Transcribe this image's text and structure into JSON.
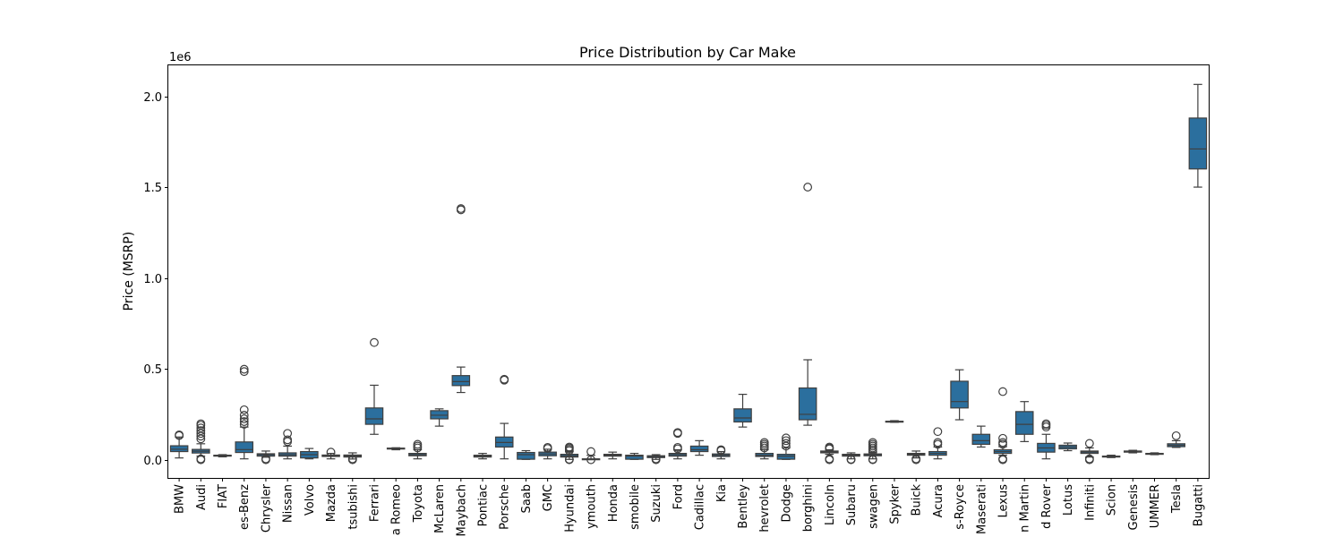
{
  "chart_data": {
    "type": "box",
    "title": "Price Distribution by Car Make",
    "xlabel": "",
    "ylabel": "Price (MSRP)",
    "y_offset_label": "1e6",
    "ylim": [
      -100000,
      2170000
    ],
    "y_ticks": [
      0,
      500000,
      1000000,
      1500000,
      2000000
    ],
    "y_tick_labels": [
      "0.0",
      "0.5",
      "1.0",
      "1.5",
      "2.0"
    ],
    "grid": false,
    "box_color": "#2b6f9e",
    "edge_color": "#3f3f3f",
    "categories": [
      {
        "label": "BMW",
        "whisker_low": 10000,
        "q1": 45000,
        "median": 58000,
        "q3": 77000,
        "whisker_high": 125000,
        "outliers": [
          133000,
          137000
        ]
      },
      {
        "label": "Audi",
        "whisker_low": 20000,
        "q1": 37000,
        "median": 47000,
        "q3": 57000,
        "whisker_high": 88000,
        "outliers": [
          0,
          5000,
          115000,
          130000,
          145000,
          160000,
          175000,
          190000,
          198000
        ]
      },
      {
        "label": "FIAT",
        "whisker_low": 16000,
        "q1": 20000,
        "median": 22000,
        "q3": 25000,
        "whisker_high": 28000,
        "outliers": []
      },
      {
        "label": "es-Benz",
        "whisker_low": 5000,
        "q1": 40000,
        "median": 56000,
        "q3": 98000,
        "whisker_high": 180000,
        "outliers": [
          195000,
          210000,
          225000,
          245000,
          275000,
          485000,
          498000
        ]
      },
      {
        "label": "Chrysler",
        "whisker_low": 14000,
        "q1": 20000,
        "median": 28000,
        "q3": 33000,
        "whisker_high": 48000,
        "outliers": [
          0,
          5000
        ]
      },
      {
        "label": "Nissan",
        "whisker_low": 5000,
        "q1": 20000,
        "median": 28000,
        "q3": 38000,
        "whisker_high": 75000,
        "outliers": [
          100000,
          110000,
          145000
        ]
      },
      {
        "label": "Volvo",
        "whisker_low": 5000,
        "q1": 10000,
        "median": 28000,
        "q3": 45000,
        "whisker_high": 62000,
        "outliers": []
      },
      {
        "label": "Mazda",
        "whisker_low": 5000,
        "q1": 18000,
        "median": 22000,
        "q3": 26000,
        "whisker_high": 35000,
        "outliers": [
          42000
        ]
      },
      {
        "label": "tsubishi",
        "whisker_low": 4000,
        "q1": 15000,
        "median": 20000,
        "q3": 26000,
        "whisker_high": 38000,
        "outliers": [
          0,
          5000
        ]
      },
      {
        "label": "Ferrari",
        "whisker_low": 140000,
        "q1": 195000,
        "median": 225000,
        "q3": 285000,
        "whisker_high": 410000,
        "outliers": [
          645000
        ]
      },
      {
        "label": "a Romeo",
        "whisker_low": 55000,
        "q1": 60000,
        "median": 62000,
        "q3": 64000,
        "whisker_high": 66000,
        "outliers": []
      },
      {
        "label": "Toyota",
        "whisker_low": 5000,
        "q1": 22000,
        "median": 28000,
        "q3": 35000,
        "whisker_high": 55000,
        "outliers": [
          65000,
          75000,
          85000
        ]
      },
      {
        "label": "McLaren",
        "whisker_low": 185000,
        "q1": 225000,
        "median": 245000,
        "q3": 270000,
        "whisker_high": 280000,
        "outliers": []
      },
      {
        "label": "Maybach",
        "whisker_low": 370000,
        "q1": 408000,
        "median": 430000,
        "q3": 463000,
        "whisker_high": 510000,
        "outliers": [
          1375000,
          1382000
        ]
      },
      {
        "label": "Pontiac",
        "whisker_low": 5000,
        "q1": 15000,
        "median": 20000,
        "q3": 25000,
        "whisker_high": 35000,
        "outliers": []
      },
      {
        "label": "Porsche",
        "whisker_low": 5000,
        "q1": 70000,
        "median": 95000,
        "q3": 125000,
        "whisker_high": 200000,
        "outliers": [
          438000,
          443000
        ]
      },
      {
        "label": "Saab",
        "whisker_low": 2000,
        "q1": 3000,
        "median": 28000,
        "q3": 40000,
        "whisker_high": 50000,
        "outliers": []
      },
      {
        "label": "GMC",
        "whisker_low": 5000,
        "q1": 22000,
        "median": 32000,
        "q3": 42000,
        "whisker_high": 58000,
        "outliers": [
          62000,
          68000
        ]
      },
      {
        "label": "Hyundai",
        "whisker_low": 2000,
        "q1": 15000,
        "median": 22000,
        "q3": 30000,
        "whisker_high": 45000,
        "outliers": [
          0,
          3000,
          50000,
          58000,
          65000,
          70000
        ]
      },
      {
        "label": "ymouth",
        "whisker_low": 2000,
        "q1": 2500,
        "median": 3000,
        "q3": 5000,
        "whisker_high": 25000,
        "outliers": [
          45000,
          0
        ]
      },
      {
        "label": "Honda",
        "whisker_low": 5000,
        "q1": 20000,
        "median": 25000,
        "q3": 30000,
        "whisker_high": 42000,
        "outliers": []
      },
      {
        "label": "smobile",
        "whisker_low": 2000,
        "q1": 3000,
        "median": 20000,
        "q3": 25000,
        "whisker_high": 35000,
        "outliers": []
      },
      {
        "label": "Suzuki",
        "whisker_low": 2000,
        "q1": 12000,
        "median": 18000,
        "q3": 22000,
        "whisker_high": 28000,
        "outliers": [
          0,
          5000
        ]
      },
      {
        "label": "Ford",
        "whisker_low": 5000,
        "q1": 20000,
        "median": 28000,
        "q3": 35000,
        "whisker_high": 55000,
        "outliers": [
          60000,
          68000,
          145000,
          150000
        ]
      },
      {
        "label": "Cadillac",
        "whisker_low": 25000,
        "q1": 45000,
        "median": 55000,
        "q3": 75000,
        "whisker_high": 105000,
        "outliers": []
      },
      {
        "label": "Kia",
        "whisker_low": 5000,
        "q1": 18000,
        "median": 25000,
        "q3": 32000,
        "whisker_high": 45000,
        "outliers": [
          50000,
          55000
        ]
      },
      {
        "label": "Bentley",
        "whisker_low": 180000,
        "q1": 208000,
        "median": 230000,
        "q3": 280000,
        "whisker_high": 360000,
        "outliers": []
      },
      {
        "label": "hevrolet",
        "whisker_low": 5000,
        "q1": 18000,
        "median": 25000,
        "q3": 35000,
        "whisker_high": 55000,
        "outliers": [
          65000,
          75000,
          85000,
          95000
        ]
      },
      {
        "label": "Dodge",
        "whisker_low": 2000,
        "q1": 3000,
        "median": 20000,
        "q3": 30000,
        "whisker_high": 65000,
        "outliers": [
          75000,
          90000,
          105000,
          120000
        ]
      },
      {
        "label": "borghini",
        "whisker_low": 190000,
        "q1": 220000,
        "median": 250000,
        "q3": 395000,
        "whisker_high": 550000,
        "outliers": [
          1500000
        ]
      },
      {
        "label": "Lincoln",
        "whisker_low": 30000,
        "q1": 38000,
        "median": 42000,
        "q3": 48000,
        "whisker_high": 55000,
        "outliers": [
          0,
          5000,
          60000,
          65000,
          70000
        ]
      },
      {
        "label": "Subaru",
        "whisker_low": 5000,
        "q1": 20000,
        "median": 25000,
        "q3": 30000,
        "whisker_high": 38000,
        "outliers": [
          0,
          3000
        ]
      },
      {
        "label": "swagen",
        "whisker_low": 5000,
        "q1": 22000,
        "median": 28000,
        "q3": 32000,
        "whisker_high": 40000,
        "outliers": [
          0,
          3000,
          45000,
          55000,
          65000,
          75000,
          85000,
          95000
        ]
      },
      {
        "label": "Spyker",
        "whisker_low": 206000,
        "q1": 208000,
        "median": 210000,
        "q3": 212000,
        "whisker_high": 215000,
        "outliers": []
      },
      {
        "label": "Buick",
        "whisker_low": 10000,
        "q1": 25000,
        "median": 30000,
        "q3": 35000,
        "whisker_high": 48000,
        "outliers": [
          0,
          5000
        ]
      },
      {
        "label": "Acura",
        "whisker_low": 5000,
        "q1": 25000,
        "median": 35000,
        "q3": 45000,
        "whisker_high": 70000,
        "outliers": [
          85000,
          95000,
          155000
        ]
      },
      {
        "label": "s-Royce",
        "whisker_low": 220000,
        "q1": 285000,
        "median": 320000,
        "q3": 432000,
        "whisker_high": 495000,
        "outliers": []
      },
      {
        "label": "Maserati",
        "whisker_low": 70000,
        "q1": 85000,
        "median": 105000,
        "q3": 140000,
        "whisker_high": 185000,
        "outliers": []
      },
      {
        "label": "Lexus",
        "whisker_low": 25000,
        "q1": 35000,
        "median": 45000,
        "q3": 55000,
        "whisker_high": 72000,
        "outliers": [
          0,
          5000,
          85000,
          95000,
          118000,
          375000
        ]
      },
      {
        "label": "n Martin",
        "whisker_low": 100000,
        "q1": 140000,
        "median": 195000,
        "q3": 265000,
        "whisker_high": 320000,
        "outliers": []
      },
      {
        "label": "d Rover",
        "whisker_low": 5000,
        "q1": 42000,
        "median": 65000,
        "q3": 90000,
        "whisker_high": 140000,
        "outliers": [
          180000,
          190000,
          198000
        ]
      },
      {
        "label": "Lotus",
        "whisker_low": 50000,
        "q1": 60000,
        "median": 70000,
        "q3": 80000,
        "whisker_high": 92000,
        "outliers": []
      },
      {
        "label": "Infiniti",
        "whisker_low": 15000,
        "q1": 35000,
        "median": 42000,
        "q3": 48000,
        "whisker_high": 65000,
        "outliers": [
          0,
          5000,
          90000
        ]
      },
      {
        "label": "Scion",
        "whisker_low": 12000,
        "q1": 15000,
        "median": 18000,
        "q3": 20000,
        "whisker_high": 25000,
        "outliers": []
      },
      {
        "label": "Genesis",
        "whisker_low": 38000,
        "q1": 42000,
        "median": 45000,
        "q3": 48000,
        "whisker_high": 52000,
        "outliers": []
      },
      {
        "label": "UMMER",
        "whisker_low": 28000,
        "q1": 30000,
        "median": 32000,
        "q3": 35000,
        "whisker_high": 38000,
        "outliers": []
      },
      {
        "label": "Tesla",
        "whisker_low": 68000,
        "q1": 72000,
        "median": 80000,
        "q3": 88000,
        "whisker_high": 105000,
        "outliers": [
          132000
        ]
      },
      {
        "label": "Bugatti",
        "whisker_low": 1500000,
        "q1": 1600000,
        "median": 1710000,
        "q3": 1880000,
        "whisker_high": 2065000,
        "outliers": []
      }
    ]
  }
}
